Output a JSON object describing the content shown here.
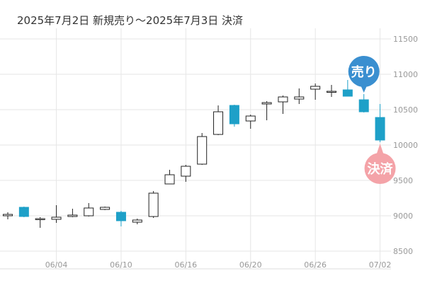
{
  "chart_data": {
    "type": "candlestick",
    "title": "2025年7月2日 新規売り〜2025年7月3日 決済",
    "ylim": [
      8250,
      11650
    ],
    "y_ticks": [
      8500,
      9000,
      9500,
      10000,
      10500,
      11000,
      11500
    ],
    "y_tick_labels": [
      "8500",
      "9000",
      "9500",
      "10000",
      "10500",
      "11000",
      "11500"
    ],
    "x_tick_labels": [
      {
        "index": 3,
        "label": "06/04"
      },
      {
        "index": 7,
        "label": "06/10"
      },
      {
        "index": 11,
        "label": "06/16"
      },
      {
        "index": 15,
        "label": "06/20"
      },
      {
        "index": 19,
        "label": "06/26"
      },
      {
        "index": 23,
        "label": "07/02"
      }
    ],
    "colors": {
      "up": "#ffffff",
      "up_border": "#222222",
      "down": "#1ea0c8",
      "grid": "#e6e6e6",
      "sell_marker": "#3a8fd0",
      "settle_marker": "#f4a3a8"
    },
    "candles": [
      {
        "open": 9000,
        "high": 9050,
        "low": 8950,
        "close": 9020
      },
      {
        "open": 9120,
        "high": 9130,
        "low": 8980,
        "close": 8990
      },
      {
        "open": 8960,
        "high": 8980,
        "low": 8830,
        "close": 8960
      },
      {
        "open": 8950,
        "high": 9150,
        "low": 8900,
        "close": 8980
      },
      {
        "open": 8990,
        "high": 9100,
        "low": 8980,
        "close": 9010
      },
      {
        "open": 9000,
        "high": 9180,
        "low": 8990,
        "close": 9110
      },
      {
        "open": 9090,
        "high": 9130,
        "low": 9080,
        "close": 9120
      },
      {
        "open": 9050,
        "high": 9070,
        "low": 8850,
        "close": 8930
      },
      {
        "open": 8910,
        "high": 8960,
        "low": 8880,
        "close": 8940
      },
      {
        "open": 8990,
        "high": 9350,
        "low": 8970,
        "close": 9320
      },
      {
        "open": 9450,
        "high": 9650,
        "low": 9450,
        "close": 9580
      },
      {
        "open": 9560,
        "high": 9720,
        "low": 9480,
        "close": 9700
      },
      {
        "open": 9730,
        "high": 10170,
        "low": 9720,
        "close": 10120
      },
      {
        "open": 10150,
        "high": 10560,
        "low": 10140,
        "close": 10470
      },
      {
        "open": 10560,
        "high": 10570,
        "low": 10260,
        "close": 10300
      },
      {
        "open": 10340,
        "high": 10430,
        "low": 10230,
        "close": 10410
      },
      {
        "open": 10580,
        "high": 10620,
        "low": 10350,
        "close": 10600
      },
      {
        "open": 10610,
        "high": 10700,
        "low": 10440,
        "close": 10680
      },
      {
        "open": 10650,
        "high": 10800,
        "low": 10580,
        "close": 10680
      },
      {
        "open": 10790,
        "high": 10870,
        "low": 10640,
        "close": 10830
      },
      {
        "open": 10750,
        "high": 10850,
        "low": 10680,
        "close": 10760
      },
      {
        "open": 10780,
        "high": 10920,
        "low": 10700,
        "close": 10690
      },
      {
        "open": 10640,
        "high": 10720,
        "low": 10460,
        "close": 10470
      },
      {
        "open": 10390,
        "high": 10580,
        "low": 10040,
        "close": 10070
      }
    ],
    "markers": [
      {
        "index": 22,
        "label": "売り",
        "kind": "sell"
      },
      {
        "index": 23,
        "label": "決済",
        "kind": "settle"
      }
    ]
  }
}
